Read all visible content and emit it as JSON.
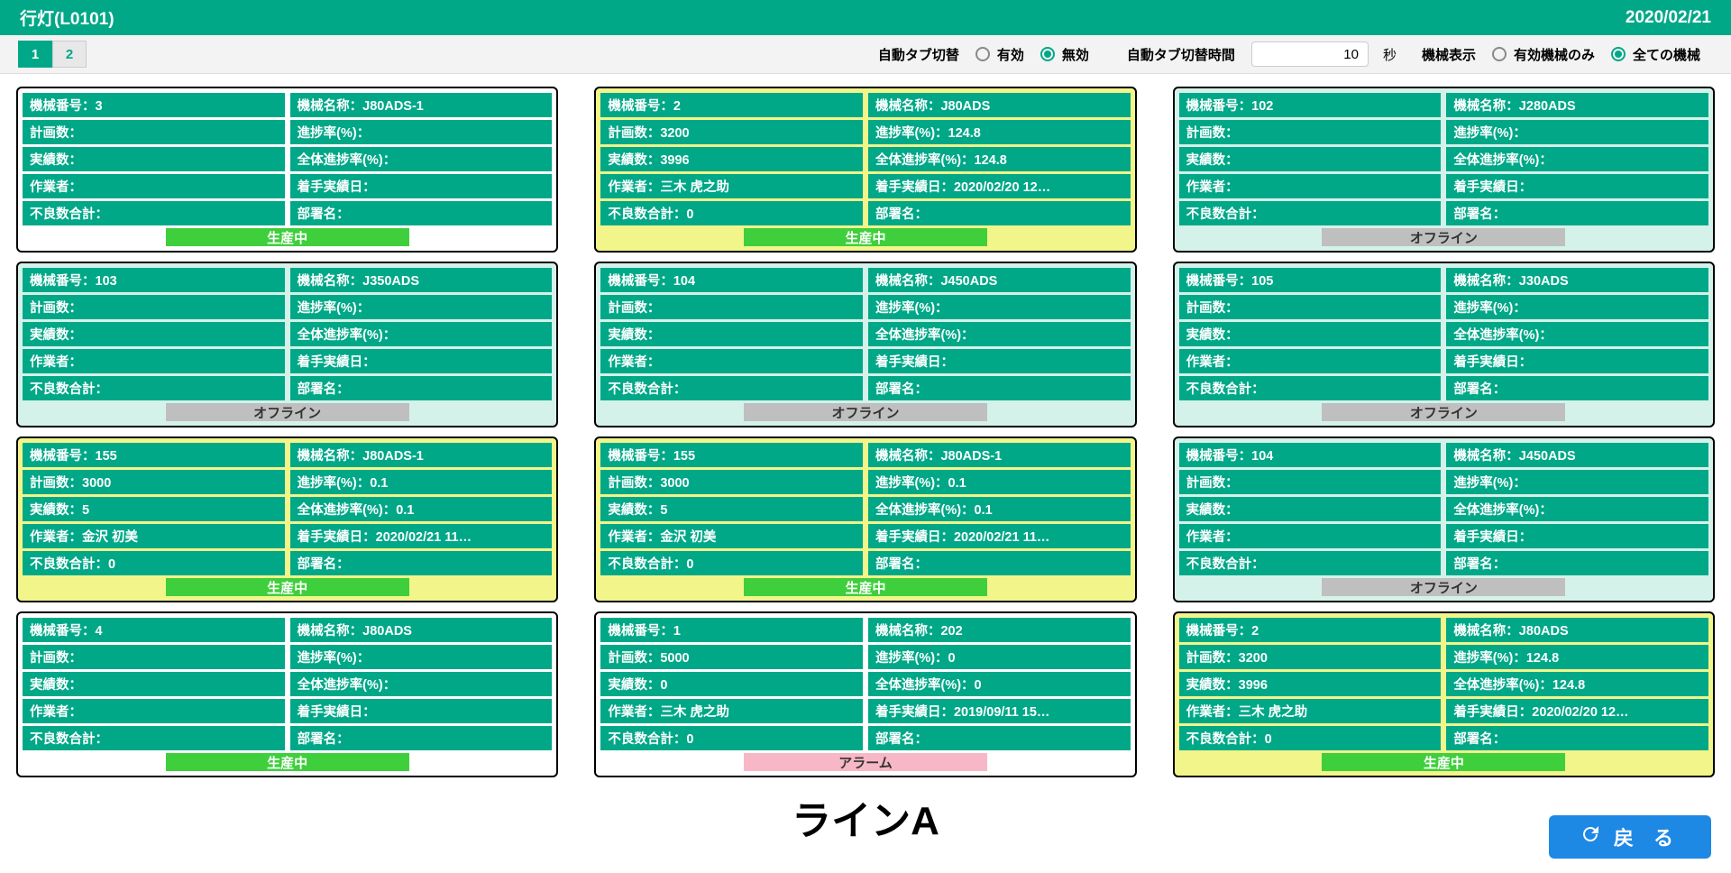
{
  "header": {
    "title": "行灯(L0101)",
    "date": "2020/02/21"
  },
  "toolbar": {
    "tabs": [
      "1",
      "2"
    ],
    "active_tab": 0,
    "auto_switch_label": "自動タブ切替",
    "enabled_label": "有効",
    "disabled_label": "無効",
    "auto_switch_enabled": false,
    "interval_label": "自動タブ切替時間",
    "interval_value": "10",
    "interval_unit": "秒",
    "display_label": "機械表示",
    "display_opt1": "有効機械のみ",
    "display_opt2": "全ての機械",
    "display_all": true
  },
  "labels": {
    "machine_no": "機械番号：",
    "machine_name": "機械名称：",
    "plan": "計画数：",
    "progress": "進捗率(%)：",
    "actual": "実績数：",
    "overall": "全体進捗率(%)：",
    "worker": "作業者：",
    "start_date": "着手実績日：",
    "defect": "不良数合計：",
    "dept": "部署名："
  },
  "status_text": {
    "prod": "生産中",
    "offline": "オフライン",
    "alarm": "アラーム"
  },
  "machines": [
    {
      "bg": "white",
      "status": "prod",
      "no": "3",
      "name": "J80ADS-1",
      "plan": "",
      "progress": "",
      "actual": "",
      "overall": "",
      "worker": "",
      "start": "",
      "defect": "",
      "dept": ""
    },
    {
      "bg": "yellow",
      "status": "prod",
      "no": "2",
      "name": "J80ADS",
      "plan": "3200",
      "progress": "124.8",
      "actual": "3996",
      "overall": "124.8",
      "worker": "三木 虎之助",
      "start": "2020/02/20 12…",
      "defect": "0",
      "dept": ""
    },
    {
      "bg": "mint",
      "status": "offline",
      "no": "102",
      "name": "J280ADS",
      "plan": "",
      "progress": "",
      "actual": "",
      "overall": "",
      "worker": "",
      "start": "",
      "defect": "",
      "dept": ""
    },
    {
      "bg": "mint",
      "status": "offline",
      "no": "103",
      "name": "J350ADS",
      "plan": "",
      "progress": "",
      "actual": "",
      "overall": "",
      "worker": "",
      "start": "",
      "defect": "",
      "dept": ""
    },
    {
      "bg": "mint",
      "status": "offline",
      "no": "104",
      "name": "J450ADS",
      "plan": "",
      "progress": "",
      "actual": "",
      "overall": "",
      "worker": "",
      "start": "",
      "defect": "",
      "dept": ""
    },
    {
      "bg": "mint",
      "status": "offline",
      "no": "105",
      "name": "J30ADS",
      "plan": "",
      "progress": "",
      "actual": "",
      "overall": "",
      "worker": "",
      "start": "",
      "defect": "",
      "dept": ""
    },
    {
      "bg": "yellow",
      "status": "prod",
      "no": "155",
      "name": "J80ADS-1",
      "plan": "3000",
      "progress": "0.1",
      "actual": "5",
      "overall": "0.1",
      "worker": "金沢 初美",
      "start": "2020/02/21 11…",
      "defect": "0",
      "dept": ""
    },
    {
      "bg": "yellow",
      "status": "prod",
      "no": "155",
      "name": "J80ADS-1",
      "plan": "3000",
      "progress": "0.1",
      "actual": "5",
      "overall": "0.1",
      "worker": "金沢 初美",
      "start": "2020/02/21 11…",
      "defect": "0",
      "dept": ""
    },
    {
      "bg": "mint",
      "status": "offline",
      "no": "104",
      "name": "J450ADS",
      "plan": "",
      "progress": "",
      "actual": "",
      "overall": "",
      "worker": "",
      "start": "",
      "defect": "",
      "dept": ""
    },
    {
      "bg": "white",
      "status": "prod",
      "no": "4",
      "name": "J80ADS",
      "plan": "",
      "progress": "",
      "actual": "",
      "overall": "",
      "worker": "",
      "start": "",
      "defect": "",
      "dept": ""
    },
    {
      "bg": "white",
      "status": "alarm",
      "no": "1",
      "name": "202",
      "plan": "5000",
      "progress": "0",
      "actual": "0",
      "overall": "0",
      "worker": "三木 虎之助",
      "start": "2019/09/11 15…",
      "defect": "0",
      "dept": ""
    },
    {
      "bg": "yellow",
      "status": "prod",
      "no": "2",
      "name": "J80ADS",
      "plan": "3200",
      "progress": "124.8",
      "actual": "3996",
      "overall": "124.8",
      "worker": "三木 虎之助",
      "start": "2020/02/20 12…",
      "defect": "0",
      "dept": ""
    }
  ],
  "line_title": "ラインA",
  "back_button": "戻 る"
}
